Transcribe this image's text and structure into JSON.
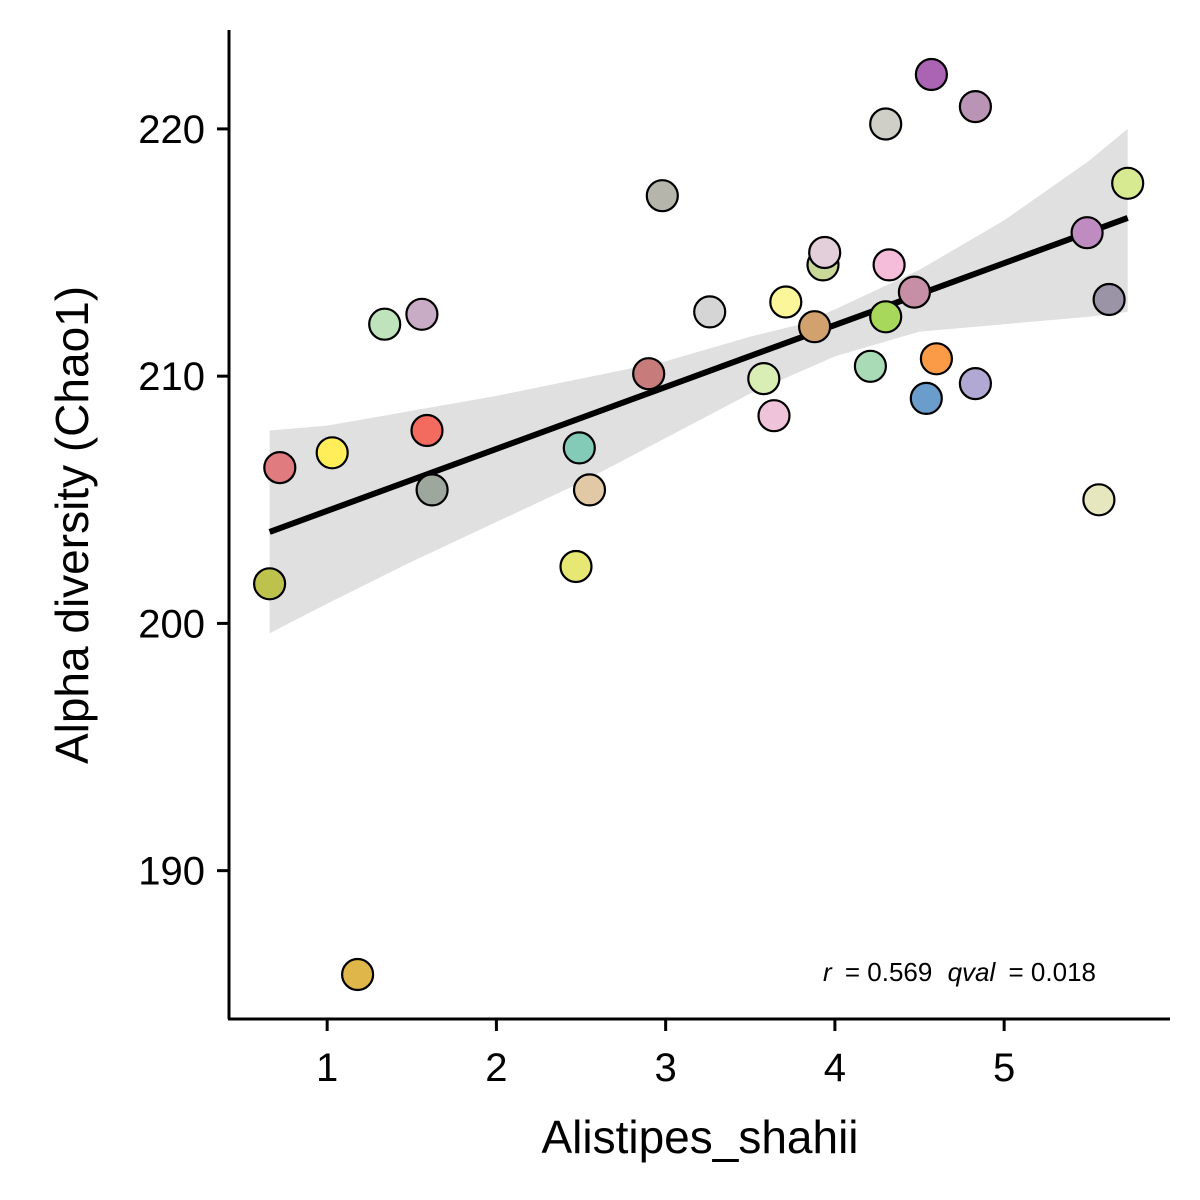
{
  "chart_data": {
    "type": "scatter",
    "xlabel": "Alistipes_shahii",
    "ylabel": "Alpha diversity (Chao1)",
    "xlim": [
      0.42,
      5.98
    ],
    "ylim": [
      184.0,
      224.0
    ],
    "x_ticks": [
      1,
      2,
      3,
      4,
      5
    ],
    "y_ticks": [
      190,
      200,
      210,
      220
    ],
    "grid": false,
    "legend": "none",
    "points": [
      {
        "x": 0.72,
        "y": 206.3,
        "color": "#e07b80"
      },
      {
        "x": 0.66,
        "y": 201.6,
        "color": "#bcc24c"
      },
      {
        "x": 1.03,
        "y": 206.9,
        "color": "#ffee5a"
      },
      {
        "x": 1.18,
        "y": 185.8,
        "color": "#deb64a"
      },
      {
        "x": 1.34,
        "y": 212.1,
        "color": "#bfe3bb"
      },
      {
        "x": 1.56,
        "y": 212.5,
        "color": "#c8abc4"
      },
      {
        "x": 1.59,
        "y": 207.8,
        "color": "#f36a5e"
      },
      {
        "x": 1.62,
        "y": 205.4,
        "color": "#9da79e"
      },
      {
        "x": 2.47,
        "y": 202.3,
        "color": "#e7e874"
      },
      {
        "x": 2.49,
        "y": 207.1,
        "color": "#83cbb6"
      },
      {
        "x": 2.55,
        "y": 205.4,
        "color": "#e2c9a6"
      },
      {
        "x": 2.9,
        "y": 210.1,
        "color": "#c77b7b"
      },
      {
        "x": 2.98,
        "y": 217.3,
        "color": "#b5b5ab"
      },
      {
        "x": 3.26,
        "y": 212.6,
        "color": "#d5d5d5"
      },
      {
        "x": 3.58,
        "y": 209.9,
        "color": "#d9eeb4"
      },
      {
        "x": 3.64,
        "y": 208.4,
        "color": "#efc4da"
      },
      {
        "x": 3.71,
        "y": 213.0,
        "color": "#fcf69a"
      },
      {
        "x": 3.88,
        "y": 212.0,
        "color": "#d1a26e"
      },
      {
        "x": 3.93,
        "y": 214.5,
        "color": "#c8d898"
      },
      {
        "x": 3.94,
        "y": 215.0,
        "color": "#e3cfd9"
      },
      {
        "x": 4.21,
        "y": 210.4,
        "color": "#a8dbb6"
      },
      {
        "x": 4.3,
        "y": 220.2,
        "color": "#cfcfc7"
      },
      {
        "x": 4.3,
        "y": 212.4,
        "color": "#a7d85c"
      },
      {
        "x": 4.32,
        "y": 214.5,
        "color": "#f6bddb"
      },
      {
        "x": 4.47,
        "y": 213.4,
        "color": "#c78fa5"
      },
      {
        "x": 4.54,
        "y": 209.1,
        "color": "#6b9dcc"
      },
      {
        "x": 4.57,
        "y": 222.2,
        "color": "#aa64b3"
      },
      {
        "x": 4.6,
        "y": 210.7,
        "color": "#fc9b47"
      },
      {
        "x": 4.83,
        "y": 209.7,
        "color": "#b1a9d3"
      },
      {
        "x": 4.83,
        "y": 220.9,
        "color": "#b994b5"
      },
      {
        "x": 5.49,
        "y": 215.8,
        "color": "#bf8cc2"
      },
      {
        "x": 5.56,
        "y": 205.0,
        "color": "#e6e6bf"
      },
      {
        "x": 5.62,
        "y": 213.1,
        "color": "#9b93a6"
      },
      {
        "x": 5.73,
        "y": 217.8,
        "color": "#d7ea92"
      }
    ],
    "fit_line": {
      "x": [
        0.66,
        5.73
      ],
      "y": [
        203.7,
        216.4
      ]
    },
    "confidence_band": {
      "x": [
        0.66,
        1.0,
        1.5,
        2.0,
        2.5,
        3.0,
        3.5,
        3.8,
        4.0,
        4.5,
        5.0,
        5.5,
        5.73
      ],
      "lower": [
        199.6,
        200.8,
        202.5,
        204.1,
        205.7,
        207.5,
        209.3,
        210.2,
        210.8,
        211.8,
        212.1,
        212.4,
        212.6
      ],
      "upper": [
        207.8,
        208.0,
        208.6,
        209.2,
        209.9,
        210.6,
        211.6,
        212.1,
        212.7,
        214.3,
        216.3,
        218.7,
        220.0
      ]
    },
    "annotation": {
      "r_label": "r",
      "r_value": "= 0.569",
      "q_label": "qval",
      "q_value": "= 0.018"
    }
  }
}
